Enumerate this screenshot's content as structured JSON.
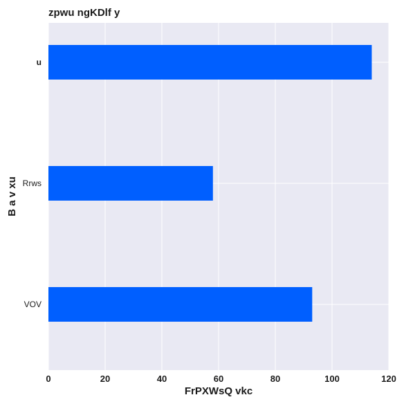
{
  "chart_data": {
    "type": "bar",
    "orientation": "horizontal",
    "title": "zpwu ngKDlf y",
    "xlabel": "FrPXWsQ vkc",
    "ylabel": "B a v  xu",
    "categories": [
      "u",
      "Rrws",
      "VOV"
    ],
    "values": [
      114,
      58,
      93
    ],
    "xlim": [
      0,
      120
    ],
    "xticks": [
      0,
      20,
      40,
      60,
      80,
      100,
      120
    ],
    "grid": true,
    "bar_color": "#005FFF",
    "plot_background": "#E9E9F3",
    "grid_color": "#FFFFFF"
  }
}
